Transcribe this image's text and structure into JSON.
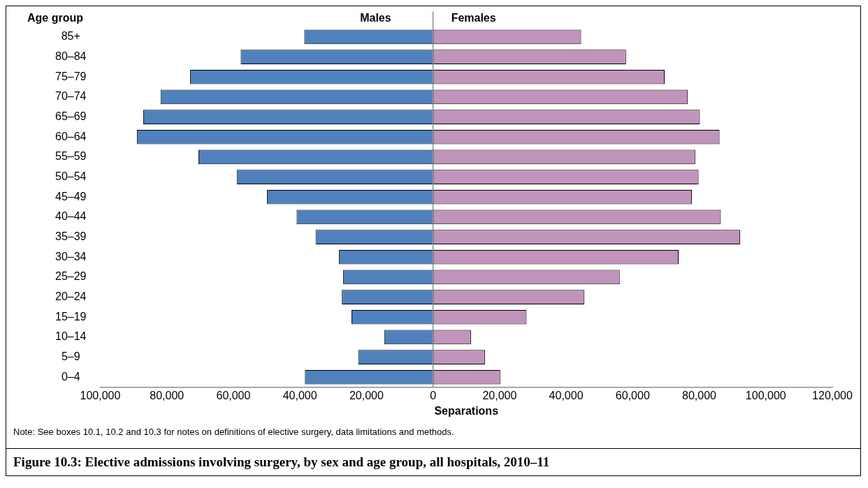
{
  "chart_data": {
    "type": "bar",
    "orientation": "horizontal",
    "stacked": true,
    "title": "Figure 10.3: Elective admissions involving surgery, by sex and age group, all hospitals, 2010–11",
    "xlabel": "Separations",
    "ylabel": "Age group",
    "annotations": [
      "Note: See boxes 10.1, 10.2 and 10.3 for notes on definitions of elective surgery, data limitations and methods."
    ],
    "categories": [
      "85+",
      "80–84",
      "75–79",
      "70–74",
      "65–69",
      "60–64",
      "55–59",
      "50–54",
      "45–49",
      "40–44",
      "35–39",
      "30–34",
      "25–29",
      "20–24",
      "15–19",
      "10–14",
      "5–9",
      "0–4"
    ],
    "series": [
      {
        "name": "Males",
        "color": "#4f81bd",
        "values": [
          -38700,
          -57800,
          -73000,
          -81900,
          -87100,
          -89000,
          -70500,
          -59000,
          -49900,
          -41000,
          -35300,
          -28300,
          -27000,
          -27400,
          -24500,
          -14600,
          -22500,
          -38500
        ]
      },
      {
        "name": "Females",
        "color": "#c194bc",
        "values": [
          44500,
          58000,
          69600,
          76500,
          80200,
          86100,
          78800,
          79800,
          77800,
          86500,
          92300,
          73800,
          56100,
          45500,
          28100,
          11400,
          15600,
          20200
        ]
      }
    ],
    "xlim": [
      -100000,
      120000
    ],
    "xticks": [
      {
        "value": -100000,
        "label": "100,000"
      },
      {
        "value": -80000,
        "label": "80,000"
      },
      {
        "value": -60000,
        "label": "60,000"
      },
      {
        "value": -40000,
        "label": "40,000"
      },
      {
        "value": -20000,
        "label": "20,000"
      },
      0,
      {
        "value": 20000,
        "label": "20,000"
      },
      {
        "value": 40000,
        "label": "40,000"
      },
      {
        "value": 60000,
        "label": "60,000"
      },
      {
        "value": 80000,
        "label": "80,000"
      },
      {
        "value": 100000,
        "label": "100,000"
      },
      {
        "value": 120000,
        "label": "120,000"
      }
    ],
    "ref_lines": [
      {
        "axis": "x",
        "value": 0,
        "color": "#8c8c8c"
      }
    ],
    "legend": false
  }
}
